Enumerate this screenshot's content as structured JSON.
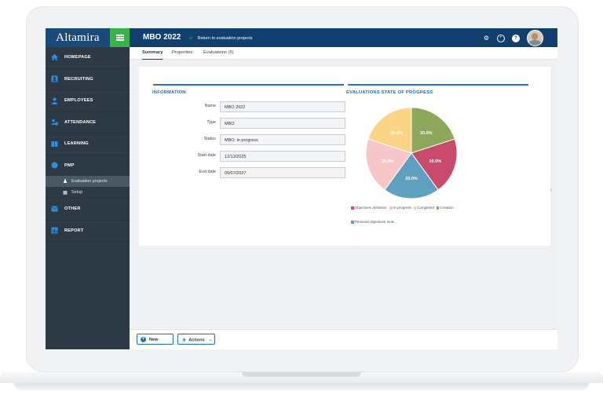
{
  "app": {
    "logo": "Altamira",
    "page_title": "MBO 2022",
    "return_link": "Return to evaluation projects"
  },
  "sidebar": {
    "items": [
      {
        "label": "HOMEPAGE",
        "icon": "home-icon"
      },
      {
        "label": "RECRUITING",
        "icon": "recruiting-icon"
      },
      {
        "label": "EMPLOYEES",
        "icon": "employees-icon"
      },
      {
        "label": "ATTENDANCE",
        "icon": "attendance-icon"
      },
      {
        "label": "LEARNING",
        "icon": "learning-icon"
      },
      {
        "label": "PMP",
        "icon": "pmp-icon"
      }
    ],
    "subitems": [
      {
        "label": "Evaluation projects",
        "icon": "evaluation-icon",
        "active": true
      },
      {
        "label": "Setup",
        "icon": "setup-icon",
        "active": false
      }
    ],
    "items_after": [
      {
        "label": "OTHER",
        "icon": "other-icon"
      },
      {
        "label": "REPORT",
        "icon": "report-icon"
      }
    ]
  },
  "tabs": [
    {
      "label": "Summary",
      "active": true
    },
    {
      "label": "Properties",
      "active": false
    },
    {
      "label": "Evaluations (5)",
      "active": false
    }
  ],
  "info": {
    "title": "INFORMATION",
    "fields": [
      {
        "label": "Name",
        "value": "MBO 2022"
      },
      {
        "label": "Type",
        "value": "MBO"
      },
      {
        "label": "Status",
        "value": "MBO: in progress"
      },
      {
        "label": "Start date",
        "value": "12/12/2025"
      },
      {
        "label": "End date",
        "value": "09/07/2027"
      }
    ]
  },
  "chart": {
    "title": "EVALUATIONS STATE OF PROGRESS"
  },
  "chart_data": {
    "type": "pie",
    "slices": [
      {
        "label": "Objectives definition",
        "value": 20.0,
        "display": "20.0%",
        "color": "#c94a6b"
      },
      {
        "label": "Personal objectives eval...",
        "value": 20.0,
        "display": "20.0%",
        "color": "#5fa0c0"
      },
      {
        "label": "In progress",
        "value": 20.0,
        "display": "20.0%",
        "color": "#f7c6c8"
      },
      {
        "label": "Completed",
        "value": 20.0,
        "display": "20.0%",
        "color": "#fbd585"
      },
      {
        "label": "Creation",
        "value": 20.0,
        "display": "20.0%",
        "color": "#8da85a"
      }
    ],
    "legend_rows": [
      [
        "Objectives definition",
        "In progress",
        "Completed",
        "Creation"
      ],
      [
        "Personal objectives eval..."
      ]
    ]
  },
  "bottom": {
    "new_label": "New",
    "actions_label": "Actions"
  },
  "colors": {
    "topbar": "#12406e",
    "accent_green": "#3ab44a",
    "sidebar": "#2d3a46",
    "link_blue": "#1b6fb5"
  }
}
